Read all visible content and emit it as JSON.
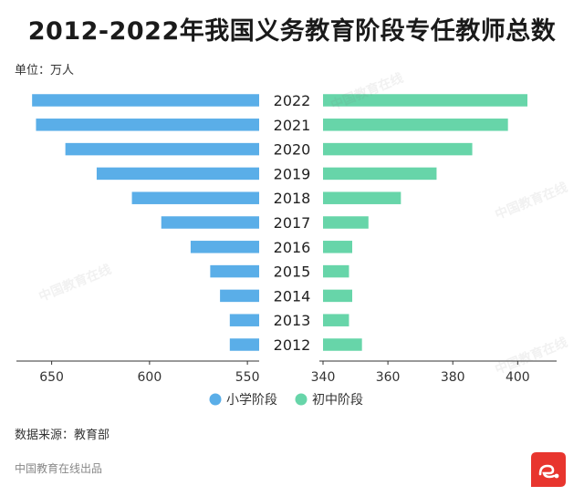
{
  "chart_data": {
    "type": "bar",
    "title": "2012-2022年我国义务教育阶段专任教师总数",
    "unit": "单位：万人",
    "categories": [
      "2022",
      "2021",
      "2020",
      "2019",
      "2018",
      "2017",
      "2016",
      "2015",
      "2014",
      "2013",
      "2012"
    ],
    "series": [
      {
        "name": "小学阶段",
        "color": "#5aaee8",
        "values": [
          660,
          658,
          643,
          627,
          609,
          594,
          579,
          569,
          564,
          559,
          559
        ]
      },
      {
        "name": "初中阶段",
        "color": "#67d5a9",
        "values": [
          403,
          397,
          386,
          375,
          364,
          354,
          349,
          348,
          349,
          348,
          352
        ]
      }
    ],
    "left_axis": {
      "ticks": [
        650,
        600,
        550
      ],
      "range": [
        668,
        544
      ],
      "reversed": true
    },
    "right_axis": {
      "ticks": [
        340,
        360,
        380,
        400
      ],
      "range": [
        340,
        412
      ]
    },
    "legend": "bottom"
  },
  "footer": {
    "source": "数据来源：教育部",
    "credit": "中国教育在线出品"
  }
}
